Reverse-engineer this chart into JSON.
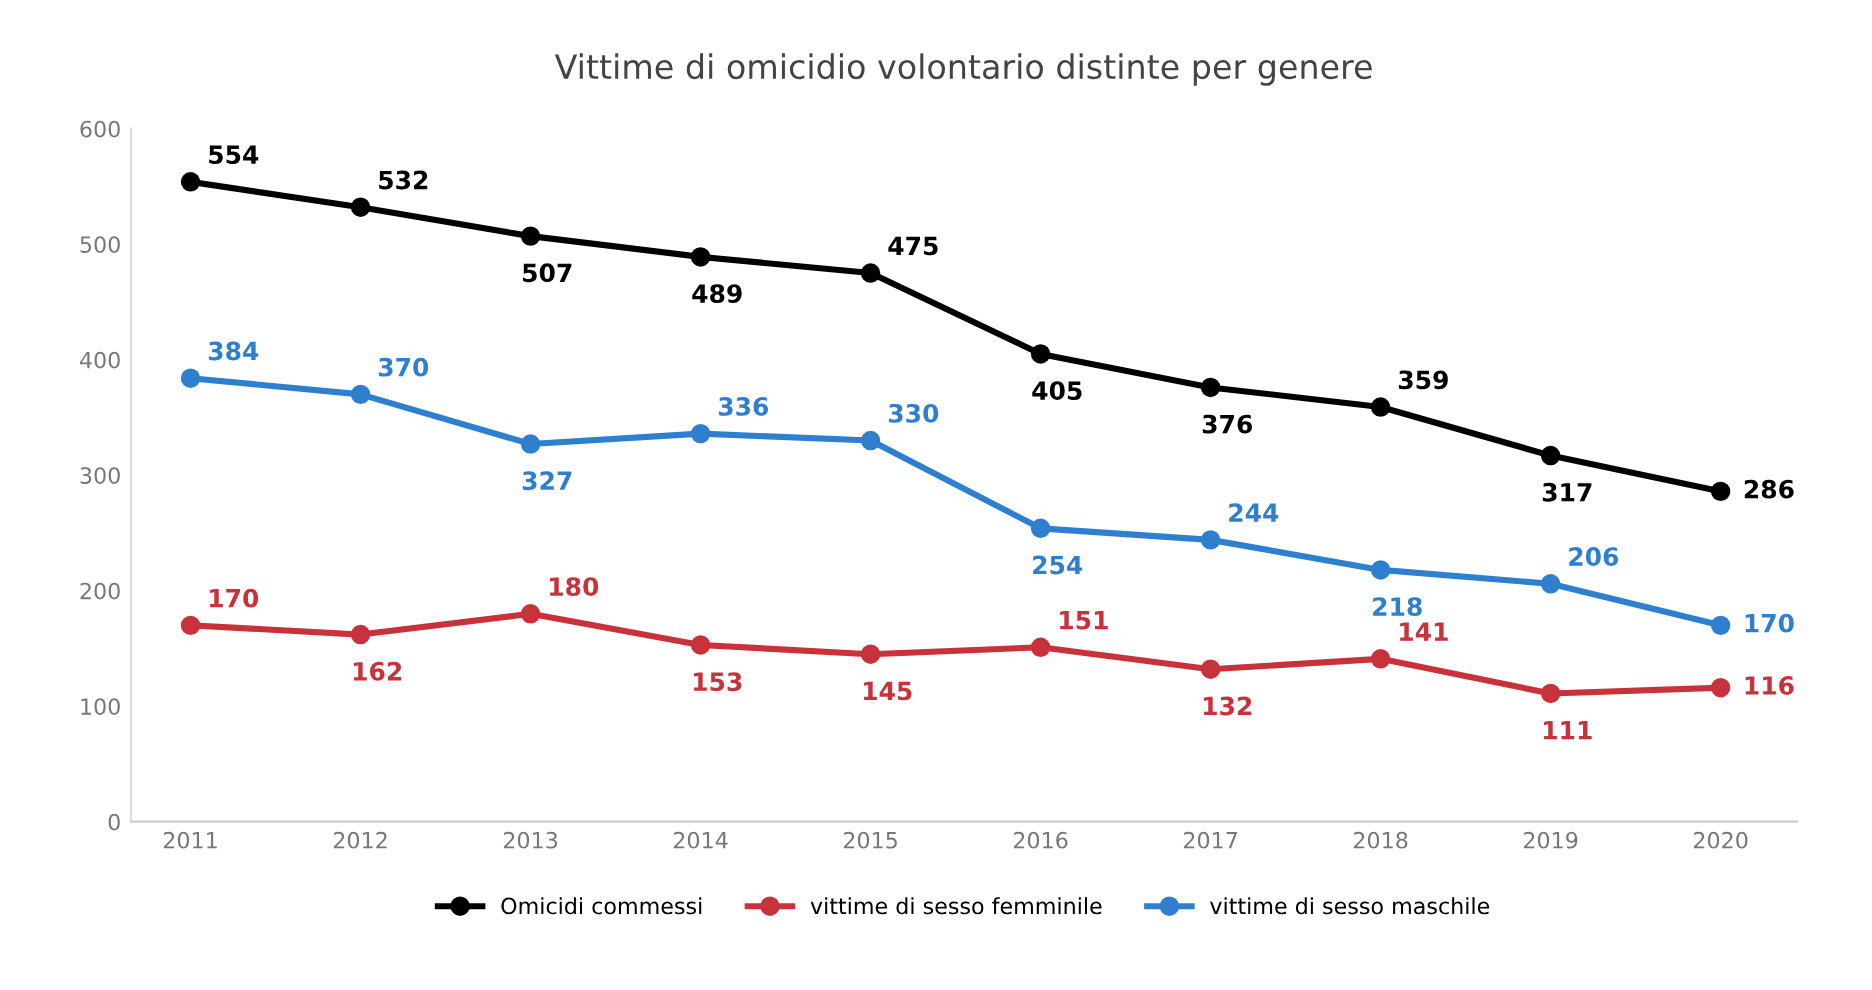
{
  "chart_data": {
    "type": "line",
    "title": "Vittime di omicidio volontario distinte per genere",
    "categories": [
      "2011",
      "2012",
      "2013",
      "2014",
      "2015",
      "2016",
      "2017",
      "2018",
      "2019",
      "2020"
    ],
    "series": [
      {
        "name": "Omicidi commessi",
        "color": "#000000",
        "values": [
          554,
          532,
          507,
          489,
          475,
          405,
          376,
          359,
          317,
          286
        ]
      },
      {
        "name": "vittime di sesso femminile",
        "color": "#c8323a",
        "values": [
          170,
          162,
          180,
          153,
          145,
          151,
          132,
          141,
          111,
          116
        ]
      },
      {
        "name": "vittime di sesso maschile",
        "color": "#2f7fcf",
        "values": [
          384,
          370,
          327,
          336,
          330,
          254,
          244,
          218,
          206,
          170
        ]
      }
    ],
    "ylim": [
      0,
      600
    ],
    "yticks": [
      0,
      100,
      200,
      300,
      400,
      500,
      600
    ],
    "grid": false,
    "legend": "bottom",
    "marker": "circle",
    "line_style": "solid",
    "data_labels": true
  }
}
